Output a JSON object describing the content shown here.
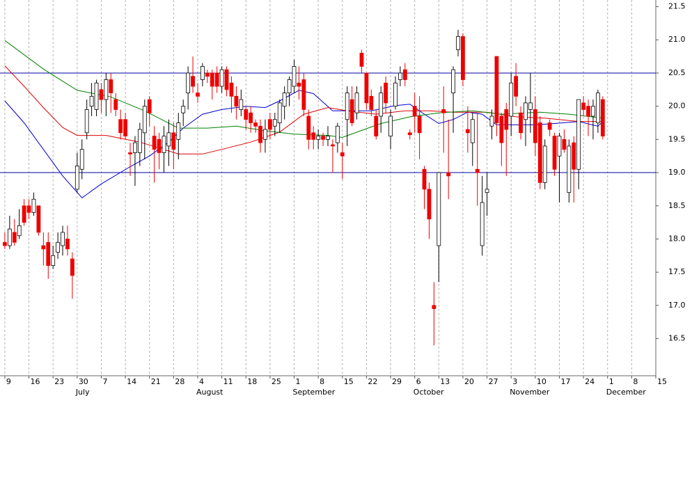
{
  "chart_data": {
    "type": "candlestick",
    "xlim": [
      -1,
      135
    ],
    "ylim": [
      15.94,
      21.6
    ],
    "yticks": [
      16.5,
      {
        "value": 17,
        "label": "17.0"
      },
      17.5,
      {
        "value": 18,
        "label": "18.0"
      },
      18.5,
      {
        "value": 19,
        "label": "19.0"
      },
      19.5,
      {
        "value": 20,
        "label": "20.0"
      },
      20.5,
      {
        "value": 21,
        "label": "21.0"
      },
      21.5
    ],
    "xticks": [
      {
        "value": 0,
        "label": "9"
      },
      {
        "value": 5,
        "label": "16"
      },
      {
        "value": 10,
        "label": "23"
      },
      {
        "value": 15,
        "label": "30"
      },
      {
        "value": 20,
        "label": "7"
      },
      {
        "value": 25,
        "label": "14"
      },
      {
        "value": 30,
        "label": "21"
      },
      {
        "value": 35,
        "label": "28"
      },
      {
        "value": 40,
        "label": "4"
      },
      {
        "value": 45,
        "label": "11"
      },
      {
        "value": 50,
        "label": "18"
      },
      {
        "value": 55,
        "label": "25"
      },
      {
        "value": 60,
        "label": "1"
      },
      {
        "value": 65,
        "label": "8"
      },
      {
        "value": 70,
        "label": "15"
      },
      {
        "value": 75,
        "label": "22"
      },
      {
        "value": 80,
        "label": "29"
      },
      {
        "value": 85,
        "label": "6"
      },
      {
        "value": 90,
        "label": "13"
      },
      {
        "value": 95,
        "label": "20"
      },
      {
        "value": 100,
        "label": "27"
      },
      {
        "value": 105,
        "label": "3"
      },
      {
        "value": 110,
        "label": "10"
      },
      {
        "value": 115,
        "label": "17"
      },
      {
        "value": 120,
        "label": "24"
      },
      {
        "value": 125,
        "label": "1"
      },
      {
        "value": 130,
        "label": "8"
      },
      {
        "value": 135,
        "label": "15"
      }
    ],
    "month_labels": [
      {
        "value": 15,
        "label": "July"
      },
      {
        "value": 40,
        "label": "August"
      },
      {
        "value": 60,
        "label": "September"
      },
      {
        "value": 85,
        "label": "October"
      },
      {
        "value": 105,
        "label": "November"
      },
      {
        "value": 125,
        "label": "December"
      }
    ],
    "grid": true,
    "up_color": "#ffffff",
    "down_color": "#ee0000",
    "hlines": [
      {
        "value": 20.5,
        "color": "#0000a0"
      },
      {
        "value": 19,
        "color": "#0000a0"
      }
    ],
    "x": [
      0,
      1,
      2,
      3,
      4,
      5,
      6,
      7,
      8,
      9,
      10,
      11,
      12,
      13,
      14,
      15,
      16,
      17,
      18,
      19,
      20,
      21,
      22,
      23,
      24,
      25,
      26,
      27,
      28,
      29,
      30,
      31,
      32,
      33,
      34,
      35,
      36,
      37,
      38,
      39,
      40,
      41,
      42,
      43,
      44,
      45,
      46,
      47,
      48,
      49,
      50,
      51,
      52,
      53,
      54,
      55,
      56,
      57,
      58,
      59,
      60,
      61,
      62,
      63,
      64,
      65,
      66,
      67,
      68,
      69,
      70,
      71,
      72,
      73,
      74,
      75,
      76,
      77,
      78,
      79,
      80,
      81,
      82,
      83,
      84,
      85,
      86,
      87,
      88,
      89,
      90,
      91,
      92,
      93,
      94,
      95,
      96,
      97,
      98,
      99,
      100,
      101,
      102,
      103,
      104,
      105,
      106,
      107,
      108,
      109,
      110,
      111,
      112,
      113,
      114,
      115,
      116,
      117,
      118,
      119,
      120,
      121,
      122,
      123,
      124
    ],
    "open": [
      17.95,
      17.9,
      18.1,
      18.05,
      18.5,
      18.5,
      18.4,
      18.5,
      17.9,
      17.95,
      17.6,
      17.8,
      17.9,
      18.0,
      17.7,
      18.75,
      19.05,
      19.6,
      20.0,
      19.95,
      20.25,
      20.1,
      20.4,
      20.1,
      19.8,
      19.8,
      19.3,
      19.3,
      19.3,
      19.6,
      20.1,
      19.55,
      19.5,
      19.3,
      19.4,
      19.6,
      19.5,
      19.9,
      20.2,
      20.45,
      20.2,
      20.4,
      20.5,
      20.5,
      20.5,
      20.3,
      20.55,
      20.35,
      20.15,
      19.95,
      19.95,
      19.9,
      19.75,
      19.7,
      19.5,
      19.8,
      19.7,
      19.75,
      20.0,
      20.2,
      20.3,
      20.35,
      20.4,
      19.85,
      19.6,
      19.5,
      19.55,
      19.5,
      19.42,
      19.45,
      19.3,
      19.8,
      20.1,
      19.9,
      20.8,
      20.5,
      20.15,
      19.85,
      19.85,
      20.35,
      19.55,
      20.0,
      20.4,
      20.55,
      19.6,
      20.0,
      19.85,
      19.05,
      18.75,
      17.0,
      17.9,
      19.95,
      19.0,
      20.2,
      20.85,
      21.05,
      19.65,
      19.45,
      19.05,
      17.9,
      18.7,
      19.7,
      20.75,
      19.85,
      19.95,
      19.85,
      20.45,
      19.9,
      19.8,
      19.95,
      19.95,
      19.75,
      18.85,
      19.75,
      19.55,
      19.25,
      19.5,
      18.7,
      19.45,
      19.05,
      20.05,
      20.0,
      19.85,
      19.75,
      20.1
    ],
    "high": [
      18.1,
      18.35,
      18.3,
      18.45,
      18.6,
      18.6,
      18.7,
      18.5,
      18.1,
      18.1,
      17.9,
      18.1,
      18.2,
      18.2,
      17.8,
      19.3,
      19.5,
      20.1,
      20.35,
      20.4,
      20.35,
      20.5,
      20.5,
      20.2,
      19.95,
      19.9,
      19.45,
      19.55,
      19.75,
      20.1,
      20.15,
      19.7,
      19.6,
      19.7,
      19.8,
      19.75,
      19.9,
      20.1,
      20.6,
      20.75,
      20.35,
      20.65,
      20.55,
      20.55,
      20.6,
      20.6,
      20.6,
      20.45,
      20.3,
      20.25,
      20.0,
      20.0,
      19.8,
      19.8,
      19.8,
      19.9,
      19.9,
      20.1,
      20.3,
      20.45,
      20.7,
      20.6,
      20.5,
      19.95,
      19.7,
      19.65,
      19.6,
      19.7,
      19.5,
      19.75,
      19.45,
      20.3,
      20.3,
      20.3,
      20.85,
      20.5,
      20.25,
      19.95,
      20.3,
      20.45,
      19.95,
      20.45,
      20.6,
      20.65,
      19.65,
      20.2,
      20.15,
      19.1,
      18.85,
      17.35,
      19.0,
      20.3,
      19.8,
      20.6,
      21.15,
      21.1,
      20.0,
      19.9,
      19.9,
      18.95,
      19.0,
      19.95,
      20.75,
      19.9,
      20.05,
      20.5,
      20.65,
      20.0,
      20.15,
      20.5,
      20.15,
      19.85,
      19.5,
      19.8,
      19.6,
      19.6,
      19.65,
      19.5,
      19.55,
      20.1,
      20.15,
      20.1,
      20.1,
      20.25,
      20.15
    ],
    "low": [
      17.85,
      17.85,
      17.9,
      18.0,
      18.2,
      18.3,
      18.35,
      18.05,
      17.6,
      17.4,
      17.55,
      17.7,
      17.75,
      17.75,
      17.1,
      18.7,
      18.9,
      19.5,
      19.85,
      19.85,
      19.9,
      19.85,
      19.9,
      19.85,
      19.5,
      19.5,
      18.95,
      18.8,
      19.1,
      19.2,
      19.7,
      18.85,
      19.05,
      19.0,
      19.1,
      19.05,
      19.2,
      19.7,
      19.95,
      20.2,
      20.05,
      20.3,
      20.35,
      20.1,
      20.2,
      20.2,
      20.15,
      19.9,
      19.8,
      19.85,
      19.65,
      19.6,
      19.6,
      19.3,
      19.3,
      19.5,
      19.55,
      19.6,
      19.8,
      20.0,
      20.2,
      20.1,
      19.85,
      19.35,
      19.35,
      19.35,
      19.4,
      19.4,
      19.0,
      19.3,
      18.9,
      19.4,
      19.7,
      19.8,
      20.5,
      19.95,
      19.85,
      19.5,
      19.6,
      19.9,
      19.35,
      19.95,
      20.3,
      20.3,
      19.5,
      19.6,
      19.2,
      18.45,
      18.0,
      16.4,
      17.35,
      19.3,
      18.6,
      19.6,
      20.75,
      20.3,
      19.3,
      19.1,
      18.5,
      17.75,
      18.35,
      19.5,
      19.55,
      19.1,
      18.95,
      19.55,
      20.0,
      19.5,
      19.4,
      19.6,
      19.25,
      18.75,
      18.75,
      19.55,
      18.95,
      18.55,
      19.3,
      18.55,
      18.55,
      18.75,
      19.85,
      19.55,
      19.5,
      19.6,
      19.5
    ],
    "close": [
      17.9,
      18.15,
      17.95,
      18.2,
      18.25,
      18.4,
      18.6,
      18.1,
      17.85,
      17.6,
      17.75,
      17.95,
      18.1,
      17.85,
      17.45,
      19.1,
      19.35,
      19.95,
      20.15,
      20.35,
      20.1,
      20.4,
      20.2,
      19.95,
      19.6,
      19.55,
      19.28,
      19.45,
      19.65,
      20.0,
      19.9,
      19.35,
      19.3,
      19.55,
      19.6,
      19.35,
      19.75,
      20.0,
      20.5,
      20.3,
      20.15,
      20.6,
      20.45,
      20.3,
      20.3,
      20.55,
      20.25,
      20.15,
      20.0,
      20.1,
      19.8,
      19.75,
      19.7,
      19.45,
      19.65,
      19.65,
      19.8,
      20.05,
      20.2,
      20.4,
      20.6,
      20.3,
      19.95,
      19.5,
      19.5,
      19.55,
      19.5,
      19.55,
      19.4,
      19.7,
      19.25,
      20.2,
      19.75,
      20.2,
      20.6,
      20.05,
      19.95,
      19.55,
      20.2,
      20.05,
      19.85,
      20.35,
      20.5,
      20.4,
      19.57,
      19.85,
      19.6,
      18.75,
      18.3,
      16.95,
      19.0,
      19.9,
      18.95,
      20.55,
      21.05,
      20.4,
      19.6,
      19.8,
      19.0,
      18.55,
      18.75,
      19.85,
      19.75,
      19.45,
      19.65,
      20.35,
      20.15,
      19.6,
      20.05,
      20.05,
      19.45,
      18.85,
      19.4,
      19.65,
      19.05,
      19.55,
      19.35,
      19.4,
      19.05,
      20.1,
      19.95,
      19.85,
      20.0,
      20.2,
      19.55
    ],
    "lines": [
      {
        "color": "#0000cc",
        "x": [
          0,
          4,
          8,
          12,
          16,
          20,
          26,
          30,
          34,
          37,
          41,
          45,
          50,
          54,
          57,
          61,
          64,
          68,
          71,
          76,
          81,
          84,
          87,
          90,
          93,
          96,
          99,
          102,
          106,
          110,
          114,
          119,
          123,
          124
        ],
        "values": [
          20.08,
          19.75,
          19.35,
          18.95,
          18.62,
          18.83,
          19.09,
          19.25,
          19.46,
          19.67,
          19.88,
          19.95,
          20.0,
          19.98,
          20.08,
          20.24,
          20.19,
          19.93,
          19.93,
          19.93,
          20.01,
          20.03,
          19.88,
          19.74,
          19.8,
          19.91,
          19.88,
          19.72,
          19.72,
          19.72,
          19.74,
          19.77,
          19.7,
          19.77
        ]
      },
      {
        "color": "#dd0000",
        "x": [
          0,
          4,
          8,
          12,
          15,
          21,
          28,
          36,
          41,
          45,
          51,
          57,
          62,
          67,
          71,
          77,
          83,
          88,
          93,
          100,
          106,
          112,
          119,
          124
        ],
        "values": [
          20.61,
          20.3,
          19.98,
          19.68,
          19.56,
          19.56,
          19.46,
          19.28,
          19.28,
          19.35,
          19.46,
          19.61,
          19.88,
          19.98,
          19.93,
          19.88,
          19.93,
          19.93,
          19.91,
          19.91,
          19.84,
          19.82,
          19.77,
          19.77
        ]
      },
      {
        "color": "#008000",
        "x": [
          0,
          8,
          15,
          22,
          29,
          36,
          42,
          48,
          54,
          60,
          67,
          70,
          73,
          78,
          84,
          90,
          97,
          103,
          111,
          117,
          124
        ],
        "values": [
          20.99,
          20.56,
          20.24,
          20.14,
          19.93,
          19.67,
          19.67,
          19.7,
          19.63,
          19.58,
          19.56,
          19.53,
          19.61,
          19.74,
          19.84,
          19.9,
          19.93,
          19.88,
          19.91,
          19.88,
          19.82
        ]
      }
    ]
  }
}
